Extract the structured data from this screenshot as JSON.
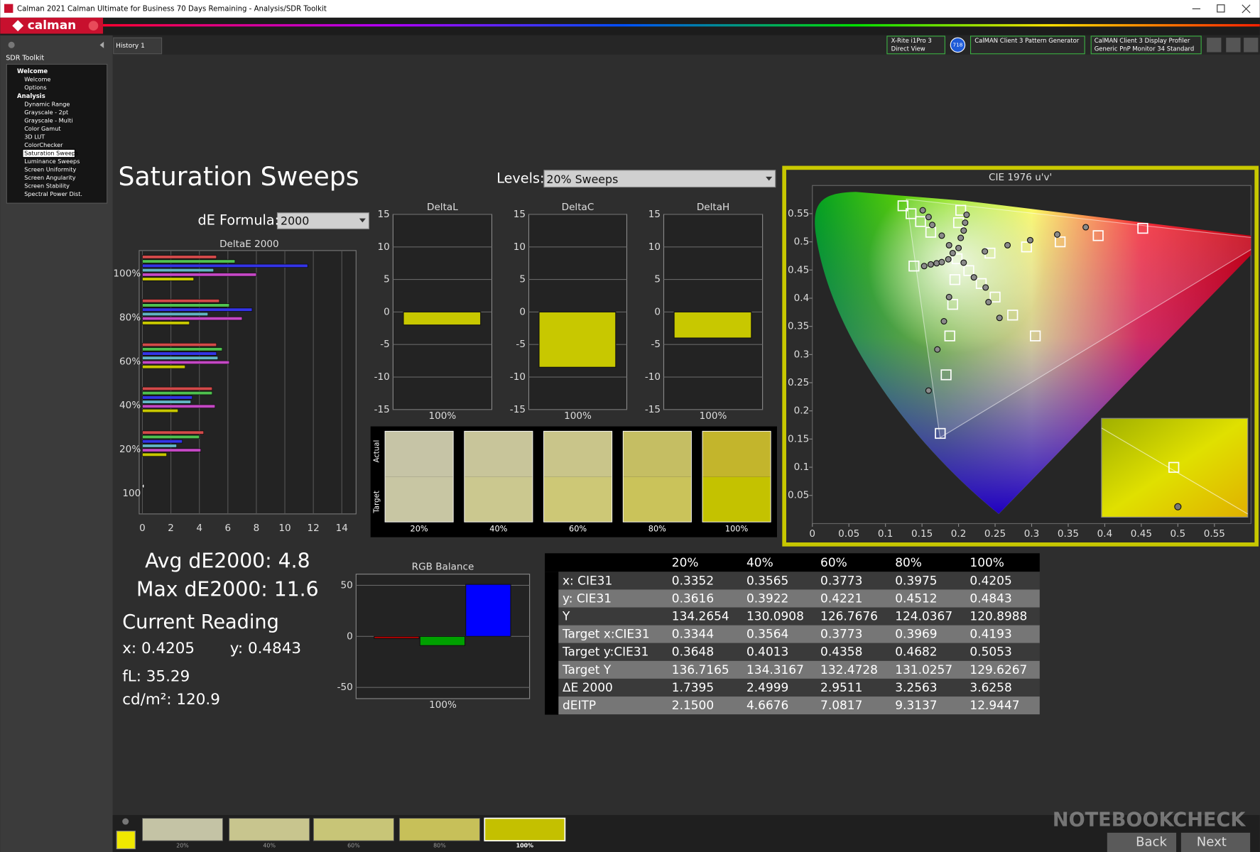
{
  "window": {
    "title": "Calman 2021 Calman Ultimate for Business 70 Days Remaining  - Analysis/SDR Toolkit"
  },
  "header": {
    "logo": "calman"
  },
  "sidebar": {
    "title": "SDR Toolkit",
    "tree": [
      {
        "label": "Welcome",
        "children": [
          "Welcome",
          "Options"
        ]
      },
      {
        "label": "Analysis",
        "children": [
          "Dynamic Range",
          "Grayscale - 2pt",
          "Grayscale - Multi",
          "Color Gamut",
          "3D LUT",
          "ColorChecker",
          "Saturation Sweeps",
          "Luminance Sweeps",
          "Screen Uniformity",
          "Screen Angularity",
          "Screen Stability",
          "Spectral Power Dist."
        ]
      }
    ],
    "selected": [
      1,
      6
    ]
  },
  "tabs": [
    "History 1"
  ],
  "devices": {
    "meter": [
      "X-Rite i1Pro 3",
      "Direct View"
    ],
    "meter_id": "718",
    "pattern_generator": [
      "CalMAN Client 3 Pattern Generator"
    ],
    "profiler": [
      "CalMAN Client 3 Display Profiler",
      "Generic PnP Monitor 34 Standard"
    ]
  },
  "page": {
    "title": "Saturation Sweeps",
    "levels_label": "Levels:",
    "levels_value": "20% Sweeps",
    "formula_label": "dE Formula:",
    "formula_value": "2000"
  },
  "chart_data": [
    {
      "type": "hbar",
      "title": "DeltaE 2000",
      "categories": [
        "100%",
        "80%",
        "60%",
        "40%",
        "20%",
        "100"
      ],
      "series": [
        {
          "color": "#d24a4a",
          "values": [
            5.2,
            5.4,
            5.2,
            4.9,
            4.3,
            null
          ]
        },
        {
          "color": "#4fc14f",
          "values": [
            6.5,
            6.1,
            5.6,
            4.9,
            4.0,
            null
          ]
        },
        {
          "color": "#3434e6",
          "values": [
            11.6,
            7.7,
            5.2,
            3.5,
            2.8,
            null
          ]
        },
        {
          "color": "#62b4c4",
          "values": [
            5.0,
            4.6,
            5.3,
            3.4,
            2.4,
            null
          ]
        },
        {
          "color": "#c448c4",
          "values": [
            8.0,
            7.0,
            6.1,
            5.1,
            4.1,
            null
          ]
        },
        {
          "color": "#c8c800",
          "values": [
            3.6,
            3.3,
            3.0,
            2.5,
            1.7,
            null
          ]
        },
        {
          "color": "#ffffff",
          "values": [
            null,
            null,
            null,
            null,
            null,
            0.1
          ]
        }
      ],
      "xlim": [
        0,
        15
      ],
      "xticks": [
        0,
        2,
        4,
        6,
        8,
        10,
        12,
        14
      ],
      "grid": true
    },
    {
      "type": "bar",
      "title": "DeltaL",
      "categories": [
        "100%"
      ],
      "values": [
        -2
      ],
      "color": "#c8c800",
      "ylim": [
        -15,
        15
      ],
      "yticks": [
        -15,
        -10,
        -5,
        0,
        5,
        10,
        15
      ],
      "grid": true
    },
    {
      "type": "bar",
      "title": "DeltaC",
      "categories": [
        "100%"
      ],
      "values": [
        -8.5
      ],
      "color": "#c8c800",
      "ylim": [
        -15,
        15
      ],
      "yticks": [
        -15,
        -10,
        -5,
        0,
        5,
        10,
        15
      ],
      "grid": true
    },
    {
      "type": "bar",
      "title": "DeltaH",
      "categories": [
        "100%"
      ],
      "values": [
        -4
      ],
      "color": "#c8c800",
      "ylim": [
        -15,
        15
      ],
      "yticks": [
        -15,
        -10,
        -5,
        0,
        5,
        10,
        15
      ],
      "grid": true
    },
    {
      "type": "scatter",
      "title": "CIE 1976 u'v'",
      "xlim": [
        0,
        0.6
      ],
      "xticks": [
        0,
        0.05,
        0.1,
        0.15,
        0.2,
        0.25,
        0.3,
        0.35,
        0.4,
        0.45,
        0.5,
        0.55
      ],
      "ylim": [
        0,
        0.6
      ],
      "yticks": [
        0.05,
        0.1,
        0.15,
        0.2,
        0.25,
        0.3,
        0.35,
        0.4,
        0.45,
        0.5,
        0.55
      ],
      "series": [
        {
          "marker": "square",
          "color": "#ffffff",
          "x": [
            0.124,
            0.135,
            0.148,
            0.162,
            0.203,
            0.2,
            0.198,
            0.139,
            0.452,
            0.391,
            0.339,
            0.293,
            0.243,
            0.214,
            0.195,
            0.231,
            0.25,
            0.192,
            0.274,
            0.188,
            0.305,
            0.183,
            0.175
          ],
          "values": [
            0.564,
            0.55,
            0.536,
            0.517,
            0.556,
            0.534,
            0.47,
            0.457,
            0.524,
            0.511,
            0.5,
            0.491,
            0.48,
            0.449,
            0.433,
            0.426,
            0.402,
            0.389,
            0.37,
            0.333,
            0.333,
            0.264,
            0.16
          ]
        },
        {
          "marker": "circle",
          "color": "#8a8a8a",
          "x": [
            0.151,
            0.159,
            0.164,
            0.177,
            0.187,
            0.192,
            0.2,
            0.203,
            0.207,
            0.209,
            0.211,
            0.153,
            0.162,
            0.17,
            0.177,
            0.186,
            0.374,
            0.335,
            0.298,
            0.267,
            0.236,
            0.207,
            0.221,
            0.237,
            0.187,
            0.241,
            0.18,
            0.256,
            0.171,
            0.159
          ],
          "values": [
            0.556,
            0.544,
            0.53,
            0.511,
            0.494,
            0.48,
            0.489,
            0.507,
            0.52,
            0.534,
            0.548,
            0.457,
            0.46,
            0.462,
            0.464,
            0.469,
            0.526,
            0.513,
            0.503,
            0.494,
            0.483,
            0.463,
            0.437,
            0.419,
            0.402,
            0.393,
            0.359,
            0.365,
            0.309,
            0.236
          ]
        }
      ]
    },
    {
      "type": "bar",
      "title": "RGB Balance",
      "categories": [
        "100%"
      ],
      "series": [
        {
          "color": "#c00000",
          "values": [
            -2
          ]
        },
        {
          "color": "#00a000",
          "values": [
            -9
          ]
        },
        {
          "color": "#0000ff",
          "values": [
            51
          ]
        }
      ],
      "ylim": [
        -61,
        61
      ],
      "yticks": [
        -50,
        0,
        50
      ],
      "grid": true
    }
  ],
  "swatches": {
    "row_labels": [
      "Actual",
      "Target"
    ],
    "labels": [
      "20%",
      "40%",
      "60%",
      "80%",
      "100%"
    ],
    "actual": [
      "#c6c4a6",
      "#c8c59a",
      "#c9c58a",
      "#c5be63",
      "#c3b52c"
    ],
    "target": [
      "#c8c6a3",
      "#cbc88f",
      "#cdc876",
      "#cac35a",
      "#c4c200"
    ]
  },
  "summary": {
    "avg": "Avg dE2000: 4.8",
    "max": "Max dE2000: 11.6",
    "heading": "Current Reading",
    "x": "x: 0.4205",
    "y": "y: 0.4843",
    "fl": "fL: 35.29",
    "cdm2": "cd/m²: 120.9"
  },
  "table": {
    "header": [
      "20%",
      "40%",
      "60%",
      "80%",
      "100%"
    ],
    "rows": [
      [
        "x: CIE31",
        "0.3352",
        "0.3565",
        "0.3773",
        "0.3975",
        "0.4205"
      ],
      [
        "y: CIE31",
        "0.3616",
        "0.3922",
        "0.4221",
        "0.4512",
        "0.4843"
      ],
      [
        "Y",
        "134.2654",
        "130.0908",
        "126.7676",
        "124.0367",
        "120.8988"
      ],
      [
        "Target x:CIE31",
        "0.3344",
        "0.3564",
        "0.3773",
        "0.3969",
        "0.4193"
      ],
      [
        "Target y:CIE31",
        "0.3648",
        "0.4013",
        "0.4358",
        "0.4682",
        "0.5053"
      ],
      [
        "Target Y",
        "136.7165",
        "134.3167",
        "132.4728",
        "131.0257",
        "129.6267"
      ],
      [
        "ΔE 2000",
        "1.7395",
        "2.4999",
        "2.9511",
        "3.2563",
        "3.6258"
      ],
      [
        "dEITP",
        "2.1500",
        "4.6676",
        "7.0817",
        "9.3137",
        "12.9447"
      ]
    ]
  },
  "patches": {
    "labels": [
      "20%",
      "40%",
      "60%",
      "80%",
      "100%"
    ],
    "colors": [
      "#c4c3a5",
      "#c8c58e",
      "#c8c577",
      "#c7c059",
      "#c4c000"
    ],
    "selected": 4
  },
  "buttons": [
    "Back",
    "Next"
  ],
  "watermark": "NOTEBOOKCHECK"
}
